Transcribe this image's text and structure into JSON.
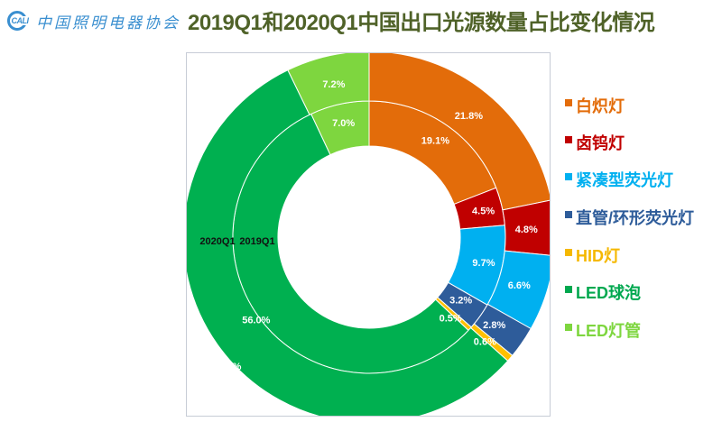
{
  "header": {
    "logo_abbr": "CALI",
    "logo_text": "中国照明电器协会",
    "title": "2019Q1和2020Q1中国出口光源数量占比变化情况"
  },
  "chart_data": {
    "type": "donut",
    "title": "2019Q1和2020Q1中国出口光源数量占比变化情况",
    "categories": [
      "白炽灯",
      "卤钨灯",
      "紧凑型荧光灯",
      "直管/环形荧光灯",
      "HID灯",
      "LED球泡",
      "LED灯管"
    ],
    "colors": [
      "#e36c0a",
      "#c00000",
      "#00b0f0",
      "#2e5c9a",
      "#ffc000",
      "#00b050",
      "#7ed63f"
    ],
    "series": [
      {
        "name": "2019Q1",
        "ring": "inner",
        "values": [
          19.1,
          4.5,
          9.7,
          3.2,
          0.5,
          56.0,
          7.0
        ],
        "labels": [
          "19.1%",
          "4.5%",
          "9.7%",
          "3.2%",
          "0.5%",
          "56.0%",
          "7.0%"
        ]
      },
      {
        "name": "2020Q1",
        "ring": "outer",
        "values": [
          21.8,
          4.8,
          6.6,
          2.8,
          0.6,
          56.2,
          7.2
        ],
        "labels": [
          "21.8%",
          "4.8%",
          "6.6%",
          "2.8%",
          "0.6%",
          "56.2%",
          "7.2%"
        ]
      }
    ],
    "series_labels": [
      "2020Q1",
      "2019Q1"
    ],
    "start_angle": "12 o'clock, clockwise",
    "legend_position": "right"
  },
  "legend": {
    "items": [
      {
        "label": "白炽灯",
        "color": "#e36c0a"
      },
      {
        "label": "卤钨灯",
        "color": "#c00000"
      },
      {
        "label": "紧凑型荧光灯",
        "color": "#00b0f0"
      },
      {
        "label": "直管/环形荧光灯",
        "color": "#2e5c9a"
      },
      {
        "label": "HID灯",
        "color": "#f5b800"
      },
      {
        "label": "LED球泡",
        "color": "#00a84f"
      },
      {
        "label": "LED灯管",
        "color": "#7ed63f"
      }
    ]
  }
}
